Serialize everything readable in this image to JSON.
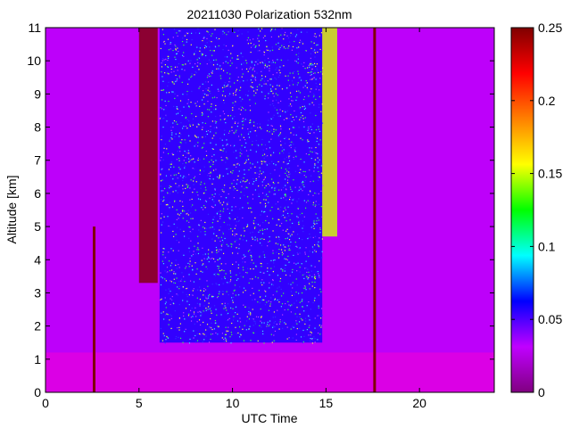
{
  "chart_data": {
    "type": "heatmap",
    "title": "20211030 Polarization 532nm",
    "xlabel": "UTC Time",
    "ylabel": "Altitude [km]",
    "xlim": [
      0,
      24
    ],
    "ylim": [
      0,
      11
    ],
    "x_ticks": [
      0,
      5,
      10,
      15,
      20
    ],
    "y_ticks": [
      0,
      1,
      2,
      3,
      4,
      5,
      6,
      7,
      8,
      9,
      10,
      11
    ],
    "colorbar": {
      "range": [
        0,
        0.25
      ],
      "ticks": [
        "0",
        "0.05",
        "0.1",
        "0.15",
        "0.2",
        "0.25"
      ],
      "colormap": [
        "#800080",
        "#c000ff",
        "#0000ff",
        "#00ffff",
        "#00ff00",
        "#ffff00",
        "#ff8000",
        "#ff0000",
        "#800000"
      ]
    },
    "features": {
      "background_value": 0.03,
      "boundary_layer": {
        "altitude_km": [
          0,
          1.2
        ],
        "value": 0.02
      },
      "high_depol_bands": [
        {
          "time_h": [
            5.0,
            6.0
          ],
          "altitude_km": [
            3.3,
            11
          ],
          "value": 0.25
        },
        {
          "time_h": [
            6.1,
            14.8
          ],
          "altitude_km": [
            1.5,
            11
          ],
          "value": 0.06
        },
        {
          "time_h": [
            14.8,
            15.6
          ],
          "altitude_km": [
            4.7,
            11
          ],
          "value": 0.15
        }
      ],
      "vertical_streaks": [
        {
          "time_h": 2.6,
          "altitude_km": [
            0,
            5
          ]
        },
        {
          "time_h": 17.6,
          "altitude_km": [
            0,
            11
          ]
        }
      ]
    }
  }
}
